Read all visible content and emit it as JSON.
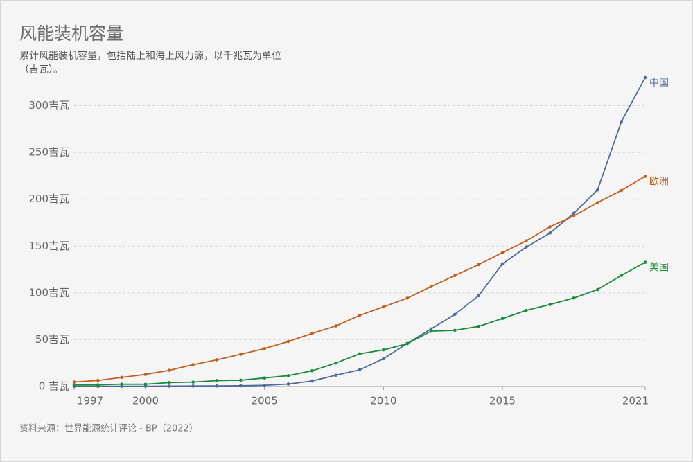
{
  "chart_data": {
    "type": "line",
    "title": "风能装机容量",
    "subtitle": [
      "累计风能装机容量，包括陆上和海上风力源，以千兆瓦为单位",
      "（吉瓦）。"
    ],
    "source": "资料来源：世界能源统计评论 - BP（2022）",
    "x": [
      1997,
      1998,
      1999,
      2000,
      2001,
      2002,
      2003,
      2004,
      2005,
      2006,
      2007,
      2008,
      2009,
      2010,
      2011,
      2012,
      2013,
      2014,
      2015,
      2016,
      2017,
      2018,
      2019,
      2020,
      2021
    ],
    "xlim": [
      1997,
      2021
    ],
    "xticks": [
      1997,
      2000,
      2005,
      2010,
      2015,
      2021
    ],
    "ylim": [
      0,
      330
    ],
    "yticks": [
      {
        "value": 0,
        "label": "0 吉瓦"
      },
      {
        "value": 50,
        "label": "50吉瓦"
      },
      {
        "value": 100,
        "label": "100吉瓦"
      },
      {
        "value": 150,
        "label": "150吉瓦"
      },
      {
        "value": 200,
        "label": "200吉瓦"
      },
      {
        "value": 250,
        "label": "250吉瓦"
      },
      {
        "value": 300,
        "label": "300吉瓦"
      }
    ],
    "grid": true,
    "series": [
      {
        "name": "中国",
        "color": "#4c6a9c",
        "values": [
          0.2,
          0.3,
          0.3,
          0.3,
          0.4,
          0.5,
          0.6,
          0.8,
          1.3,
          2.6,
          5.9,
          12,
          17.8,
          29.6,
          46,
          61.5,
          77,
          97,
          131,
          149,
          164,
          185,
          210,
          283,
          330
        ]
      },
      {
        "name": "欧洲",
        "color": "#c15f1f",
        "values": [
          4.8,
          6.5,
          9.7,
          12.9,
          17.3,
          23.3,
          28.5,
          34.4,
          40.5,
          48.1,
          56.7,
          64.7,
          76,
          85.1,
          94.4,
          106.8,
          118.5,
          130.3,
          143,
          155.6,
          170.6,
          182.2,
          196.5,
          209.4,
          224.6
        ]
      },
      {
        "name": "美国",
        "color": "#1b8a3b",
        "values": [
          1.6,
          1.8,
          2.5,
          2.4,
          4.2,
          4.7,
          6.3,
          6.7,
          9.1,
          11.6,
          16.8,
          25,
          34.9,
          39.1,
          45.7,
          59.1,
          60,
          64.2,
          72.6,
          81.3,
          87.6,
          94.5,
          103.6,
          118.7,
          132.7
        ]
      }
    ]
  }
}
